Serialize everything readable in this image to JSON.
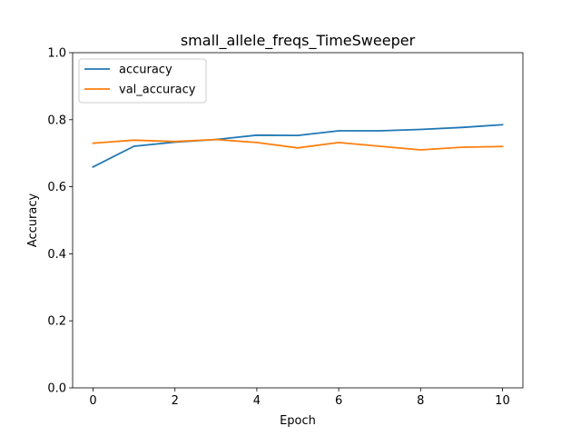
{
  "chart_data": {
    "type": "line",
    "title": "small_allele_freqs_TimeSweeper",
    "xlabel": "Epoch",
    "ylabel": "Accuracy",
    "xlim": [
      -0.5,
      10.5
    ],
    "ylim": [
      0.0,
      1.0
    ],
    "x_ticks": [
      0,
      2,
      4,
      6,
      8,
      10
    ],
    "x_tick_labels": [
      "0",
      "2",
      "4",
      "6",
      "8",
      "10"
    ],
    "y_ticks": [
      0.0,
      0.2,
      0.4,
      0.6,
      0.8,
      1.0
    ],
    "y_tick_labels": [
      "0.0",
      "0.2",
      "0.4",
      "0.6",
      "0.8",
      "1.0"
    ],
    "grid": false,
    "legend_position": "top-left",
    "x": [
      0,
      1,
      2,
      3,
      4,
      5,
      6,
      7,
      8,
      9,
      10
    ],
    "series": [
      {
        "name": "accuracy",
        "color": "#1f77b4",
        "values": [
          0.659,
          0.721,
          0.733,
          0.741,
          0.754,
          0.753,
          0.767,
          0.767,
          0.771,
          0.777,
          0.785
        ]
      },
      {
        "name": "val_accuracy",
        "color": "#ff7f0e",
        "values": [
          0.73,
          0.739,
          0.735,
          0.741,
          0.732,
          0.716,
          0.732,
          0.721,
          0.71,
          0.718,
          0.72
        ]
      }
    ]
  }
}
